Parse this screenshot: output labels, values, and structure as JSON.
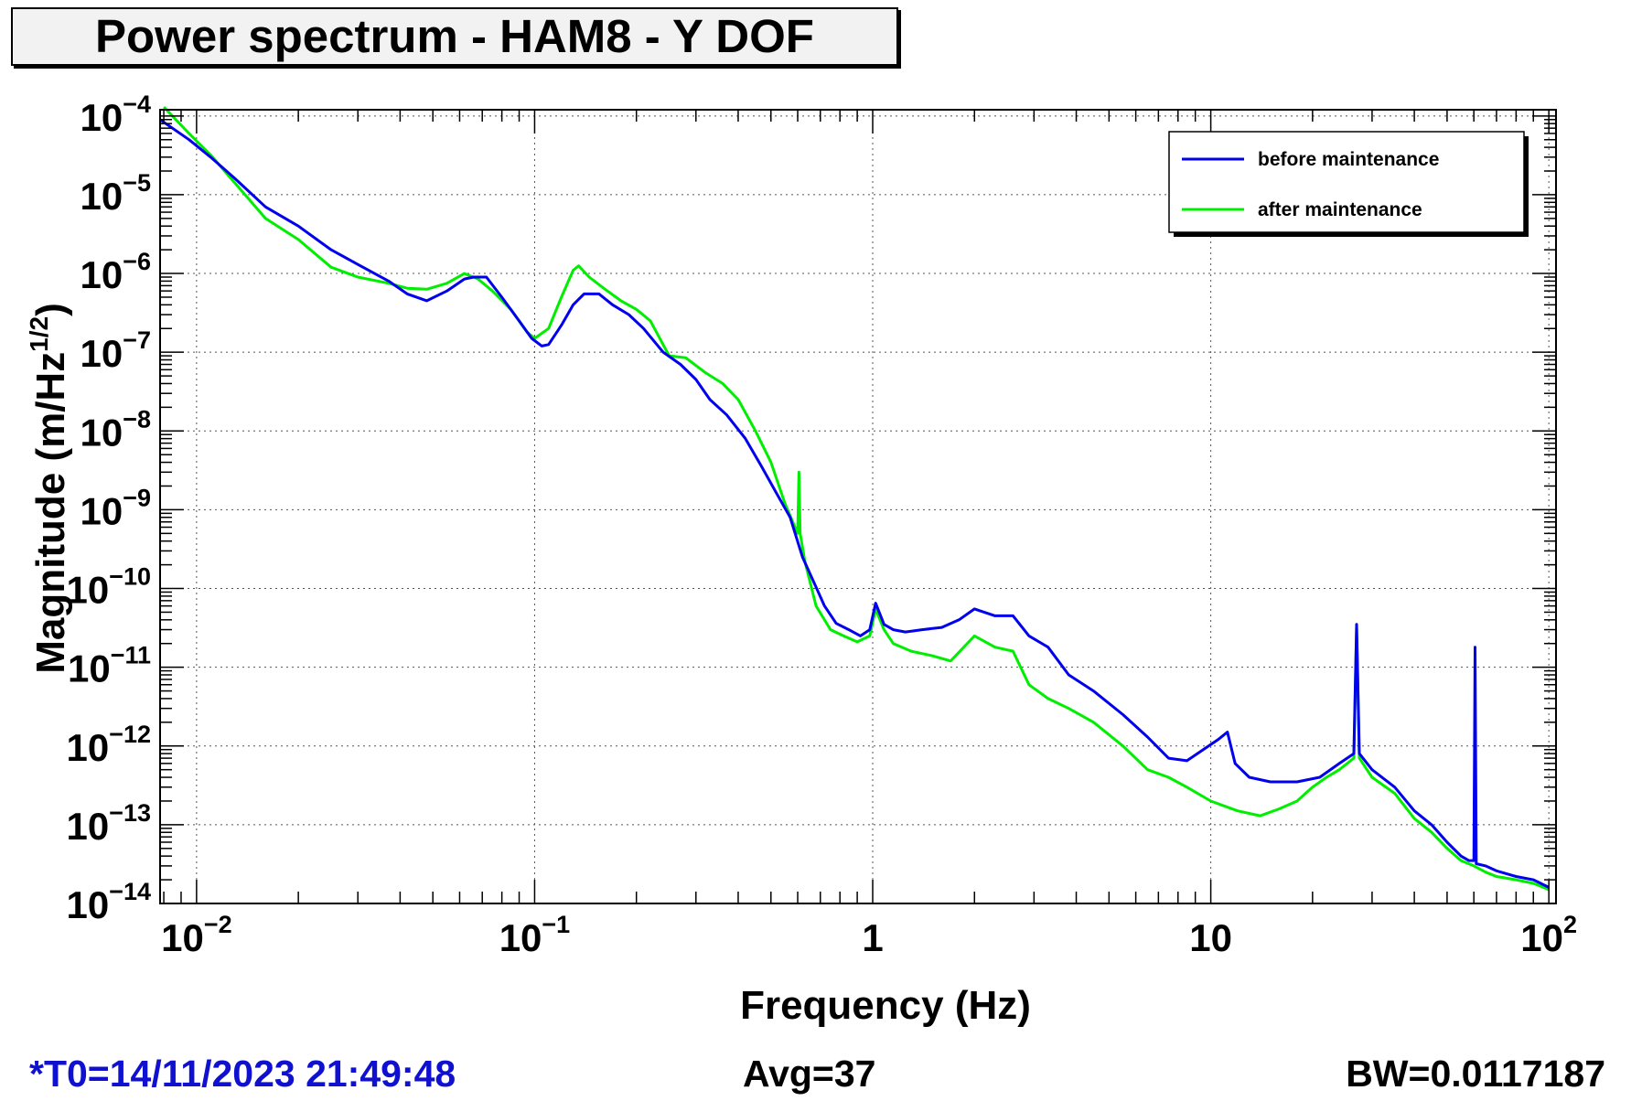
{
  "title": "Power spectrum - HAM8 - Y DOF",
  "footer": {
    "t0": "*T0=14/11/2023 21:49:48",
    "avg": "Avg=37",
    "bw": "BW=0.0117187"
  },
  "colors": {
    "before": "#0000ee",
    "after": "#00ee00",
    "t0_text": "#1010d0"
  },
  "chart_data": {
    "type": "line",
    "title": "Power spectrum - HAM8 - Y DOF",
    "xlabel": "Frequency (Hz)",
    "ylabel": "Magnitude (m/Hz",
    "ylabel_sup": "1/2",
    "ylabel_end": ")",
    "xscale": "log",
    "yscale": "log",
    "xlim": [
      0.0078,
      105
    ],
    "ylim": [
      1e-14,
      0.00012
    ],
    "grid": true,
    "legend_position": "top-right",
    "x_ticks": [
      {
        "value": 0.01,
        "base": "10",
        "exp": "−2"
      },
      {
        "value": 0.1,
        "base": "10",
        "exp": "−1"
      },
      {
        "value": 1,
        "base": "1",
        "exp": ""
      },
      {
        "value": 10,
        "base": "10",
        "exp": ""
      },
      {
        "value": 100,
        "base": "10",
        "exp": "2"
      }
    ],
    "y_ticks": [
      {
        "value": 0.0001,
        "base": "10",
        "exp": "−4"
      },
      {
        "value": 1e-05,
        "base": "10",
        "exp": "−5"
      },
      {
        "value": 1e-06,
        "base": "10",
        "exp": "−6"
      },
      {
        "value": 1e-07,
        "base": "10",
        "exp": "−7"
      },
      {
        "value": 1e-08,
        "base": "10",
        "exp": "−8"
      },
      {
        "value": 1e-09,
        "base": "10",
        "exp": "−9"
      },
      {
        "value": 1e-10,
        "base": "10",
        "exp": "−10"
      },
      {
        "value": 1e-11,
        "base": "10",
        "exp": "−11"
      },
      {
        "value": 1e-12,
        "base": "10",
        "exp": "−12"
      },
      {
        "value": 1e-13,
        "base": "10",
        "exp": "−13"
      },
      {
        "value": 1e-14,
        "base": "10",
        "exp": "−14"
      }
    ],
    "series": [
      {
        "name": "before maintenance",
        "color": "#0000ee",
        "points": [
          [
            0.0078,
            9e-05
          ],
          [
            0.0095,
            5e-05
          ],
          [
            0.011,
            3e-05
          ],
          [
            0.013,
            1.6e-05
          ],
          [
            0.016,
            7e-06
          ],
          [
            0.02,
            4e-06
          ],
          [
            0.025,
            2e-06
          ],
          [
            0.03,
            1.3e-06
          ],
          [
            0.037,
            8e-07
          ],
          [
            0.042,
            5.5e-07
          ],
          [
            0.048,
            4.5e-07
          ],
          [
            0.055,
            6e-07
          ],
          [
            0.062,
            8.5e-07
          ],
          [
            0.066,
            9e-07
          ],
          [
            0.072,
            9e-07
          ],
          [
            0.08,
            5e-07
          ],
          [
            0.09,
            2.5e-07
          ],
          [
            0.098,
            1.5e-07
          ],
          [
            0.105,
            1.2e-07
          ],
          [
            0.11,
            1.25e-07
          ],
          [
            0.12,
            2.2e-07
          ],
          [
            0.13,
            4e-07
          ],
          [
            0.14,
            5.5e-07
          ],
          [
            0.155,
            5.5e-07
          ],
          [
            0.17,
            4e-07
          ],
          [
            0.19,
            3e-07
          ],
          [
            0.21,
            2e-07
          ],
          [
            0.24,
            1e-07
          ],
          [
            0.27,
            7e-08
          ],
          [
            0.3,
            4.5e-08
          ],
          [
            0.33,
            2.5e-08
          ],
          [
            0.37,
            1.6e-08
          ],
          [
            0.42,
            8e-09
          ],
          [
            0.47,
            3.5e-09
          ],
          [
            0.52,
            1.6e-09
          ],
          [
            0.57,
            8e-10
          ],
          [
            0.62,
            2.5e-10
          ],
          [
            0.67,
            1.2e-10
          ],
          [
            0.72,
            6e-11
          ],
          [
            0.78,
            3.6e-11
          ],
          [
            0.85,
            3e-11
          ],
          [
            0.92,
            2.5e-11
          ],
          [
            0.98,
            3e-11
          ],
          [
            1.02,
            6.5e-11
          ],
          [
            1.08,
            3.5e-11
          ],
          [
            1.15,
            3e-11
          ],
          [
            1.25,
            2.8e-11
          ],
          [
            1.4,
            3e-11
          ],
          [
            1.6,
            3.2e-11
          ],
          [
            1.8,
            4e-11
          ],
          [
            2.0,
            5.5e-11
          ],
          [
            2.3,
            4.5e-11
          ],
          [
            2.6,
            4.5e-11
          ],
          [
            2.9,
            2.5e-11
          ],
          [
            3.3,
            1.8e-11
          ],
          [
            3.8,
            8e-12
          ],
          [
            4.5,
            5e-12
          ],
          [
            5.5,
            2.5e-12
          ],
          [
            6.5,
            1.3e-12
          ],
          [
            7.5,
            7e-13
          ],
          [
            8.5,
            6.5e-13
          ],
          [
            9.5,
            9e-13
          ],
          [
            10.5,
            1.2e-12
          ],
          [
            11.2,
            1.5e-12
          ],
          [
            11.8,
            6e-13
          ],
          [
            13,
            4e-13
          ],
          [
            15,
            3.5e-13
          ],
          [
            18,
            3.5e-13
          ],
          [
            21,
            4e-13
          ],
          [
            24,
            6e-13
          ],
          [
            26.5,
            8e-13
          ],
          [
            27,
            3.5e-11
          ],
          [
            27.5,
            8e-13
          ],
          [
            30,
            5e-13
          ],
          [
            35,
            3e-13
          ],
          [
            40,
            1.5e-13
          ],
          [
            45,
            1e-13
          ],
          [
            50,
            6e-14
          ],
          [
            55,
            4e-14
          ],
          [
            58,
            3.5e-14
          ],
          [
            60,
            3.5e-14
          ],
          [
            60.5,
            1.8e-11
          ],
          [
            61,
            3.2e-14
          ],
          [
            65,
            3e-14
          ],
          [
            70,
            2.6e-14
          ],
          [
            80,
            2.2e-14
          ],
          [
            90,
            2e-14
          ],
          [
            100,
            1.6e-14
          ]
        ]
      },
      {
        "name": "after maintenance",
        "color": "#00ee00",
        "points": [
          [
            0.008,
            0.00013
          ],
          [
            0.0095,
            6e-05
          ],
          [
            0.011,
            3.2e-05
          ],
          [
            0.013,
            1.4e-05
          ],
          [
            0.016,
            5e-06
          ],
          [
            0.02,
            2.7e-06
          ],
          [
            0.025,
            1.2e-06
          ],
          [
            0.03,
            9e-07
          ],
          [
            0.037,
            7.5e-07
          ],
          [
            0.042,
            6.5e-07
          ],
          [
            0.048,
            6.3e-07
          ],
          [
            0.055,
            7.5e-07
          ],
          [
            0.062,
            1e-06
          ],
          [
            0.068,
            8.5e-07
          ],
          [
            0.075,
            6e-07
          ],
          [
            0.085,
            3.5e-07
          ],
          [
            0.095,
            1.8e-07
          ],
          [
            0.1,
            1.5e-07
          ],
          [
            0.11,
            2e-07
          ],
          [
            0.12,
            5e-07
          ],
          [
            0.13,
            1.1e-06
          ],
          [
            0.135,
            1.25e-06
          ],
          [
            0.145,
            9e-07
          ],
          [
            0.16,
            6.5e-07
          ],
          [
            0.18,
            4.5e-07
          ],
          [
            0.2,
            3.5e-07
          ],
          [
            0.22,
            2.5e-07
          ],
          [
            0.25,
            9e-08
          ],
          [
            0.28,
            8.5e-08
          ],
          [
            0.32,
            5.5e-08
          ],
          [
            0.36,
            4e-08
          ],
          [
            0.4,
            2.5e-08
          ],
          [
            0.45,
            1e-08
          ],
          [
            0.5,
            4e-09
          ],
          [
            0.55,
            1.2e-09
          ],
          [
            0.58,
            7e-10
          ],
          [
            0.6,
            5e-10
          ],
          [
            0.605,
            3e-09
          ],
          [
            0.61,
            5e-10
          ],
          [
            0.63,
            2.2e-10
          ],
          [
            0.68,
            6e-11
          ],
          [
            0.75,
            3e-11
          ],
          [
            0.82,
            2.5e-11
          ],
          [
            0.9,
            2.1e-11
          ],
          [
            0.98,
            2.5e-11
          ],
          [
            1.02,
            5.5e-11
          ],
          [
            1.08,
            3e-11
          ],
          [
            1.15,
            2e-11
          ],
          [
            1.3,
            1.6e-11
          ],
          [
            1.5,
            1.4e-11
          ],
          [
            1.7,
            1.2e-11
          ],
          [
            2.0,
            2.5e-11
          ],
          [
            2.3,
            1.8e-11
          ],
          [
            2.6,
            1.6e-11
          ],
          [
            2.9,
            6e-12
          ],
          [
            3.3,
            4e-12
          ],
          [
            3.8,
            3e-12
          ],
          [
            4.5,
            2e-12
          ],
          [
            5.5,
            1e-12
          ],
          [
            6.5,
            5e-13
          ],
          [
            7.5,
            4e-13
          ],
          [
            8.5,
            3e-13
          ],
          [
            10,
            2e-13
          ],
          [
            12,
            1.5e-13
          ],
          [
            14,
            1.3e-13
          ],
          [
            16,
            1.6e-13
          ],
          [
            18,
            2e-13
          ],
          [
            20,
            3e-13
          ],
          [
            22,
            4e-13
          ],
          [
            24,
            5e-13
          ],
          [
            26.5,
            7e-13
          ],
          [
            27,
            3.2e-11
          ],
          [
            27.5,
            7e-13
          ],
          [
            30,
            4e-13
          ],
          [
            35,
            2.5e-13
          ],
          [
            40,
            1.2e-13
          ],
          [
            45,
            8e-14
          ],
          [
            50,
            5e-14
          ],
          [
            55,
            3.5e-14
          ],
          [
            60,
            3e-14
          ],
          [
            65,
            2.5e-14
          ],
          [
            70,
            2.2e-14
          ],
          [
            80,
            2e-14
          ],
          [
            90,
            1.8e-14
          ],
          [
            100,
            1.5e-14
          ]
        ]
      }
    ]
  }
}
